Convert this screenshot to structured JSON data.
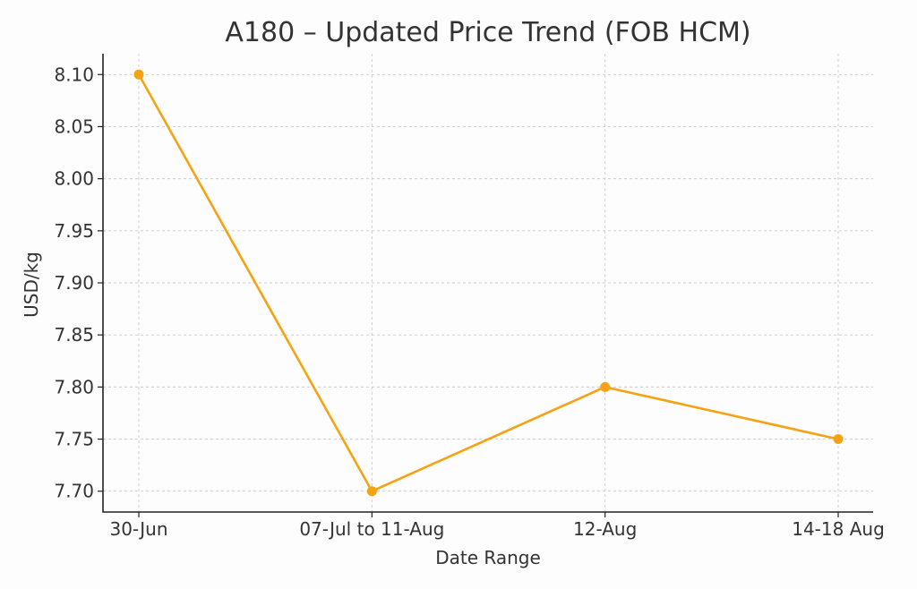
{
  "chart_data": {
    "type": "line",
    "title": "A180 – Updated Price Trend (FOB HCM)",
    "xlabel": "Date Range",
    "ylabel": "USD/kg",
    "categories": [
      "30-Jun",
      "07-Jul to 11-Aug",
      "12-Aug",
      "14-18 Aug"
    ],
    "series": [
      {
        "values": [
          8.1,
          7.7,
          7.8,
          7.75
        ],
        "color": "#f5a213"
      }
    ],
    "ylim": [
      7.68,
      8.12
    ],
    "yticks": [
      "7.70",
      "7.75",
      "7.80",
      "7.85",
      "7.90",
      "7.95",
      "8.00",
      "8.05",
      "8.10"
    ],
    "grid": true
  }
}
